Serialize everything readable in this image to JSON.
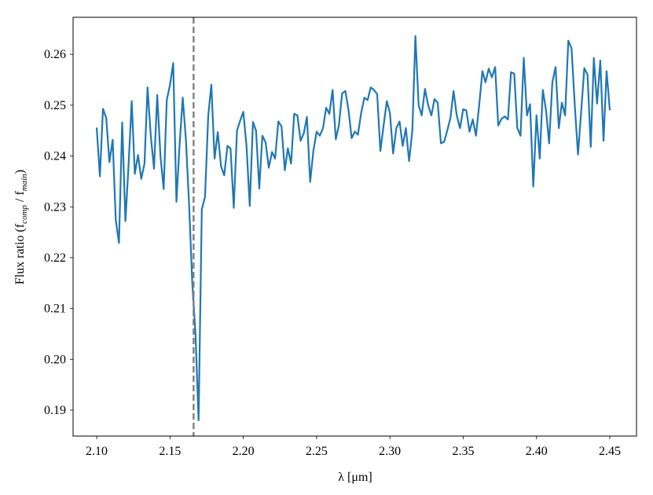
{
  "chart_data": {
    "type": "line",
    "xlabel": "λ [μm]",
    "ylabel_parts": [
      "Flux ratio (f",
      "comp",
      " / f",
      "main",
      ")"
    ],
    "xlim": [
      2.0839,
      2.4682
    ],
    "ylim": [
      0.1849,
      0.2673
    ],
    "xticks": [
      {
        "value": 2.1,
        "label": "2.10"
      },
      2.15,
      {
        "value": 2.2,
        "label": "2.20"
      },
      2.25,
      {
        "value": 2.3,
        "label": "2.30"
      },
      2.35,
      {
        "value": 2.4,
        "label": "2.40"
      },
      2.45
    ],
    "yticks": [
      0.19,
      {
        "value": 0.2,
        "label": "0.20"
      },
      0.21,
      0.22,
      0.23,
      0.24,
      0.25,
      0.26
    ],
    "grid": false,
    "vline": {
      "x": 2.1661,
      "color": "#7f7f7f",
      "dashed": true
    },
    "x": [
      2.1,
      2.1022,
      2.1043,
      2.1065,
      2.1087,
      2.1109,
      2.113,
      2.1152,
      2.1174,
      2.1196,
      2.1217,
      2.1239,
      2.126,
      2.1282,
      2.1304,
      2.1326,
      2.1347,
      2.1369,
      2.1391,
      2.1413,
      2.1435,
      2.1457,
      2.1478,
      2.15,
      2.1522,
      2.1544,
      2.1565,
      2.1587,
      2.1609,
      2.1631,
      2.1652,
      2.1674,
      2.1695,
      2.1717,
      2.1739,
      2.1761,
      2.1782,
      2.1804,
      2.1826,
      2.1848,
      2.187,
      2.1892,
      2.1913,
      2.1935,
      2.1957,
      2.1979,
      2.2,
      2.2022,
      2.2044,
      2.2066,
      2.2087,
      2.2109,
      2.213,
      2.2152,
      2.2174,
      2.2196,
      2.2217,
      2.2239,
      2.2261,
      2.2283,
      2.2304,
      2.2326,
      2.2347,
      2.2369,
      2.2391,
      2.2413,
      2.2434,
      2.2456,
      2.2478,
      2.25,
      2.2522,
      2.2544,
      2.2565,
      2.2587,
      2.2609,
      2.2631,
      2.2652,
      2.2674,
      2.2696,
      2.2718,
      2.2739,
      2.2761,
      2.2782,
      2.2804,
      2.2826,
      2.2848,
      2.2869,
      2.2891,
      2.2913,
      2.2935,
      2.2957,
      2.2979,
      2.3,
      2.3022,
      2.3044,
      2.3066,
      2.3087,
      2.3109,
      2.3131,
      2.3153,
      2.3174,
      2.3196,
      2.3217,
      2.3239,
      2.3261,
      2.3283,
      2.3304,
      2.3326,
      2.3348,
      2.337,
      2.3391,
      2.3413,
      2.3434,
      2.3456,
      2.3478,
      2.35,
      2.3521,
      2.3543,
      2.3565,
      2.3587,
      2.3609,
      2.3631,
      2.3652,
      2.3674,
      2.3696,
      2.3718,
      2.3739,
      2.3761,
      2.3783,
      2.3805,
      2.3826,
      2.3848,
      2.3869,
      2.3891,
      2.3913,
      2.3935,
      2.3956,
      2.3978,
      2.4,
      2.4022,
      2.4043,
      2.4065,
      2.4086,
      2.4108,
      2.413,
      2.4152,
      2.4173,
      2.4195,
      2.4217,
      2.4239,
      2.4261,
      2.4283,
      2.4304,
      2.4326,
      2.4348,
      2.437,
      2.4391,
      2.4413,
      2.4435,
      2.4457,
      2.4478,
      2.45
    ],
    "series": [
      {
        "color": "#1f77b4",
        "values": [
          0.2456,
          0.236,
          0.2493,
          0.2475,
          0.2388,
          0.2432,
          0.2275,
          0.2229,
          0.2466,
          0.2272,
          0.238,
          0.2508,
          0.2365,
          0.2402,
          0.2355,
          0.2385,
          0.2535,
          0.244,
          0.2375,
          0.252,
          0.24,
          0.2335,
          0.251,
          0.254,
          0.2583,
          0.231,
          0.242,
          0.2515,
          0.243,
          0.23,
          0.215,
          0.205,
          0.188,
          0.2295,
          0.232,
          0.248,
          0.254,
          0.2395,
          0.2447,
          0.238,
          0.2362,
          0.242,
          0.2415,
          0.2298,
          0.245,
          0.247,
          0.2487,
          0.242,
          0.2302,
          0.2467,
          0.245,
          0.2336,
          0.244,
          0.2427,
          0.2377,
          0.2408,
          0.2395,
          0.2468,
          0.2458,
          0.2372,
          0.2415,
          0.2385,
          0.2483,
          0.248,
          0.243,
          0.2445,
          0.2477,
          0.2349,
          0.241,
          0.2448,
          0.244,
          0.2455,
          0.2495,
          0.2483,
          0.253,
          0.2433,
          0.246,
          0.2523,
          0.2528,
          0.249,
          0.2435,
          0.2448,
          0.2442,
          0.2485,
          0.2515,
          0.251,
          0.2535,
          0.253,
          0.2522,
          0.241,
          0.246,
          0.2508,
          0.2485,
          0.2405,
          0.2455,
          0.2468,
          0.242,
          0.2455,
          0.239,
          0.245,
          0.2636,
          0.25,
          0.248,
          0.2532,
          0.25,
          0.248,
          0.2512,
          0.2505,
          0.2425,
          0.2428,
          0.245,
          0.2475,
          0.2528,
          0.248,
          0.2455,
          0.2492,
          0.249,
          0.2448,
          0.2472,
          0.244,
          0.25,
          0.2567,
          0.2545,
          0.2572,
          0.2555,
          0.2575,
          0.246,
          0.2473,
          0.2478,
          0.2472,
          0.2565,
          0.2562,
          0.2455,
          0.244,
          0.2593,
          0.248,
          0.2502,
          0.234,
          0.248,
          0.2395,
          0.253,
          0.249,
          0.2425,
          0.2545,
          0.2575,
          0.2455,
          0.2505,
          0.248,
          0.2627,
          0.2612,
          0.25,
          0.2403,
          0.2485,
          0.2573,
          0.256,
          0.2418,
          0.2593,
          0.2503,
          0.2588,
          0.243,
          0.2567,
          0.249
        ]
      }
    ]
  }
}
